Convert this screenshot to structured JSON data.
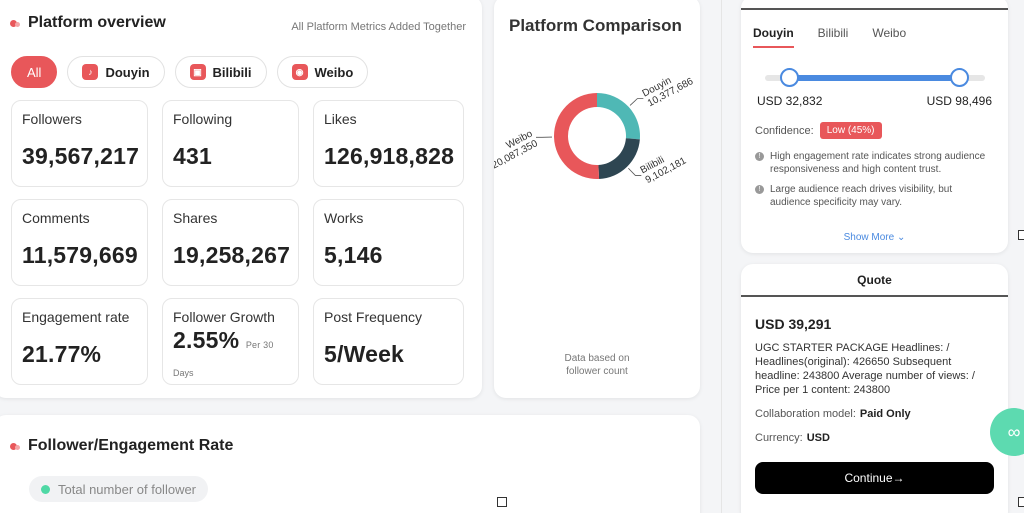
{
  "overview": {
    "title": "Platform overview",
    "note": "All Platform Metrics Added Together",
    "filters": [
      "All",
      "Douyin",
      "Bilibili",
      "Weibo"
    ],
    "metrics": [
      {
        "label": "Followers",
        "value": "39,567,217"
      },
      {
        "label": "Following",
        "value": "431"
      },
      {
        "label": "Likes",
        "value": "126,918,828"
      },
      {
        "label": "Comments",
        "value": "11,579,669"
      },
      {
        "label": "Shares",
        "value": "19,258,267"
      },
      {
        "label": "Works",
        "value": "5,146"
      },
      {
        "label": "Engagement rate",
        "value": "21.77%"
      },
      {
        "label": "Follower Growth",
        "value": "2.55%",
        "sub": "Per 30",
        "days": "Days"
      },
      {
        "label": "Post Frequency",
        "value": "5/Week"
      }
    ]
  },
  "comparison": {
    "title": "Platform Comparison",
    "note_line1": "Data based on",
    "note_line2": "follower count",
    "slices": [
      {
        "name": "Douyin",
        "value": 10377686,
        "label": "10,377,686",
        "color": "#4fb8b5"
      },
      {
        "name": "Bilibili",
        "value": 9102181,
        "label": "9,102,181",
        "color": "#2e4652"
      },
      {
        "name": "Weibo",
        "value": 20087350,
        "label": "20,087,350",
        "color": "#e8575a"
      }
    ]
  },
  "follower": {
    "title": "Follower/Engagement Rate",
    "chip": "Total number of follower"
  },
  "pricing": {
    "tabs": [
      "Douyin",
      "Bilibili",
      "Weibo"
    ],
    "min": "USD 32,832",
    "max": "USD 98,496",
    "confidence_label": "Confidence:",
    "confidence_value": "Low (45%)",
    "notes": [
      "High engagement rate indicates strong audience responsiveness and high content trust.",
      "Large audience reach drives visibility, but audience specificity may vary."
    ],
    "show_more": "Show More"
  },
  "quote": {
    "header": "Quote",
    "price": "USD 39,291",
    "description": "UGC STARTER PACKAGE Headlines: / Headlines(original): 426650 Subsequent headline: 243800 Average number of views: / Price per 1 content: 243800",
    "model_label": "Collaboration model:",
    "model_value": "Paid Only",
    "currency_label": "Currency:",
    "currency_value": "USD",
    "button": "Continue→"
  },
  "icons": {
    "platform": "platform-logo-icon",
    "info": "info-icon",
    "chevron": "chevron-down-icon",
    "fab": "link-icon"
  },
  "colors": {
    "accent": "#e8575a",
    "blue": "#4a8ae0",
    "teal": "#4fb8b5",
    "dark_slate": "#2e4652",
    "green": "#4fd8a5"
  }
}
